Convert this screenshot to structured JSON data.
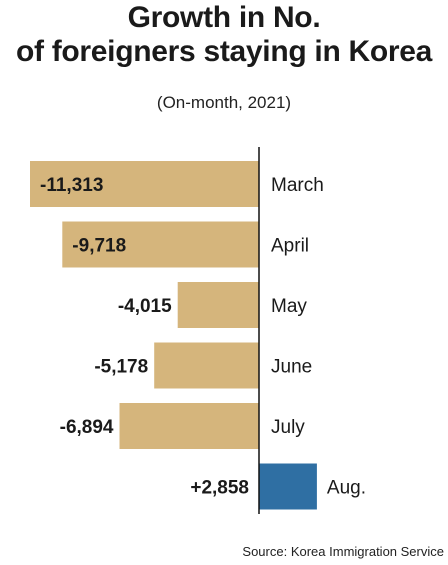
{
  "header": {
    "title_line_1": "Growth in No.",
    "title_line_2": "of foreigners staying in Korea",
    "subtitle": "(On-month, 2021)"
  },
  "footer": {
    "source": "Source: Korea Immigration Service"
  },
  "colors": {
    "negative_bar": "#d5b57c",
    "positive_bar": "#2f6fa3",
    "axis_line": "#111111",
    "text": "#1a1a1a"
  },
  "chart_data": {
    "type": "bar",
    "orientation": "horizontal",
    "categories": [
      "March",
      "April",
      "May",
      "June",
      "July",
      "Aug."
    ],
    "values": [
      -11313,
      -9718,
      -4015,
      -5178,
      -6894,
      2858
    ],
    "value_labels": [
      "-11,313",
      "-9,718",
      "-4,015",
      "-5,178",
      "-6,894",
      "+2,858"
    ],
    "title": "Growth in No. of foreigners staying in Korea",
    "subtitle": "(On-month, 2021)",
    "xlabel": "",
    "ylabel": "",
    "grid": false,
    "legend": "none"
  }
}
